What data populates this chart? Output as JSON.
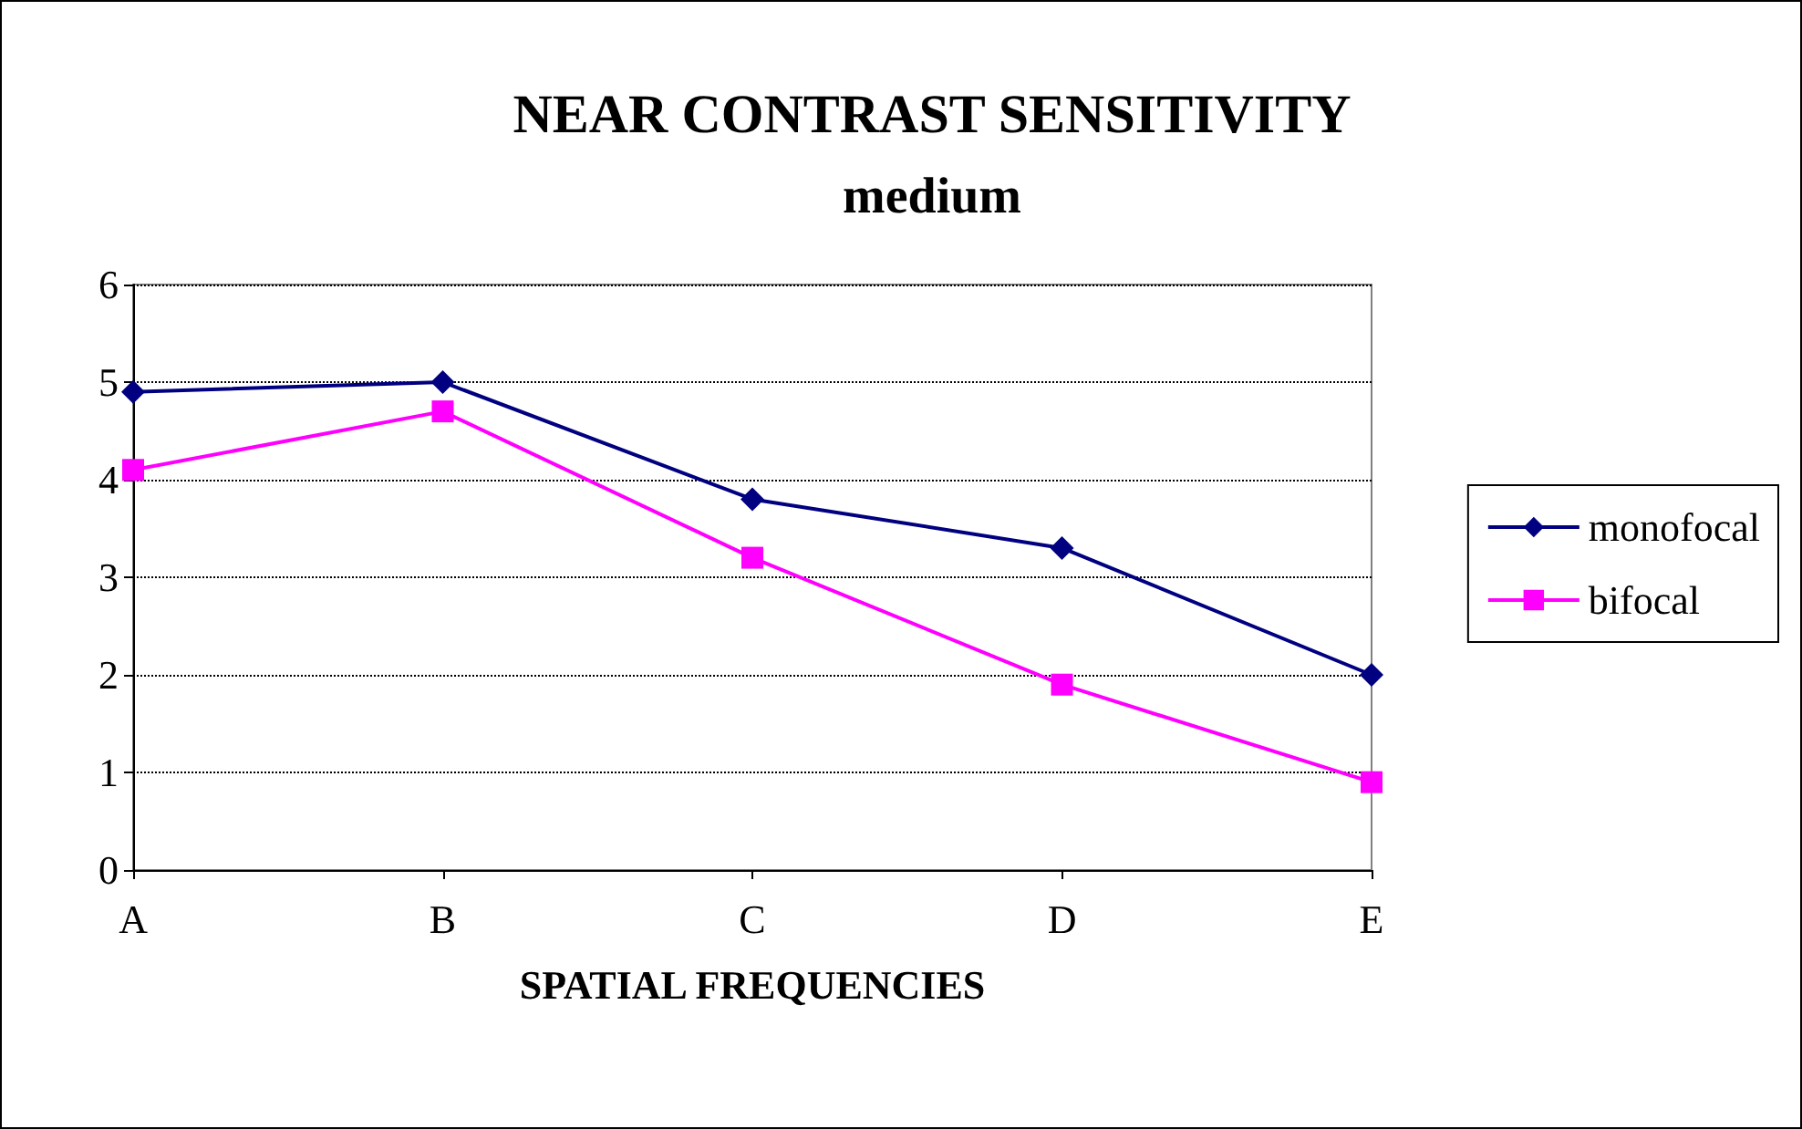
{
  "chart_data": {
    "type": "line",
    "title": "NEAR CONTRAST SENSITIVITY",
    "subtitle": "medium",
    "xlabel": "SPATIAL FREQUENCIES",
    "categories": [
      "A",
      "B",
      "C",
      "D",
      "E"
    ],
    "series": [
      {
        "name": "monofocal",
        "color": "#000080",
        "marker": "diamond",
        "values": [
          4.9,
          5.0,
          3.8,
          3.3,
          2.0
        ]
      },
      {
        "name": "bifocal",
        "color": "#ff00ff",
        "marker": "square",
        "values": [
          4.1,
          4.7,
          3.2,
          1.9,
          0.9
        ]
      }
    ],
    "ylim": [
      0,
      6
    ],
    "yticks": [
      0,
      1,
      2,
      3,
      4,
      5,
      6
    ],
    "grid": "y",
    "legend": "right",
    "line_style": "solid"
  }
}
